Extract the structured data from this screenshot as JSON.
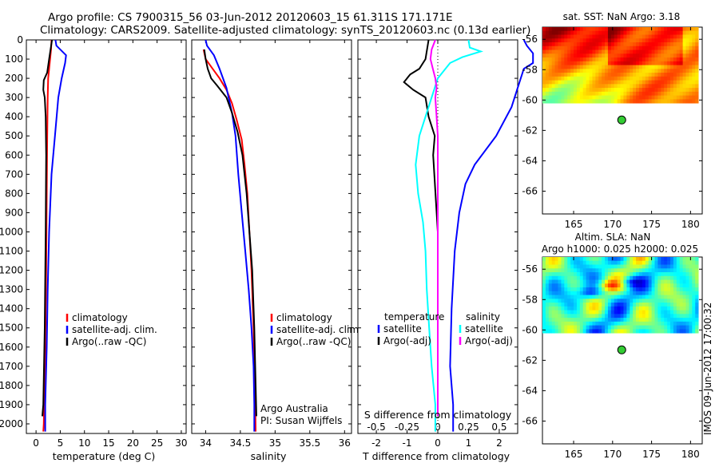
{
  "header": {
    "line1": "Argo profile: CS 7900315_56 03-Jun-2012 20120603_15 61.311S 171.171E",
    "line2": "Climatology: CARS2009. Satellite-adjusted climatology: synTS_20120603.nc (0.13d earlier)"
  },
  "colors": {
    "climatology": "#ff0000",
    "satellite": "#0000ff",
    "argo": "#000000",
    "sal_satellite": "#00ffff",
    "sal_argo": "#ff00ff",
    "marker": "#33cc33"
  },
  "chart_data": [
    {
      "type": "line",
      "id": "temperature",
      "xlabel": "temperature (deg C)",
      "xlim": [
        -2,
        31
      ],
      "ylim": [
        2050,
        0
      ],
      "xticks": [
        0,
        5,
        10,
        15,
        20,
        25,
        30
      ],
      "yticks": [
        0,
        100,
        200,
        300,
        400,
        500,
        600,
        700,
        800,
        900,
        1000,
        1100,
        1200,
        1300,
        1400,
        1500,
        1600,
        1700,
        1800,
        1900,
        2000
      ],
      "legend": [
        "climatology",
        "satellite-adj. clim.",
        "Argo(..raw -QC)"
      ],
      "series": [
        {
          "name": "climatology",
          "color": "#ff0000",
          "points": [
            [
              3.2,
              0
            ],
            [
              3.1,
              50
            ],
            [
              2.9,
              100
            ],
            [
              2.7,
              150
            ],
            [
              2.5,
              200
            ],
            [
              2.4,
              300
            ],
            [
              2.3,
              500
            ],
            [
              2.2,
              800
            ],
            [
              2.1,
              1200
            ],
            [
              1.9,
              1600
            ],
            [
              1.6,
              2000
            ],
            [
              1.5,
              2040
            ]
          ]
        },
        {
          "name": "satellite-adj. clim.",
          "color": "#0000ff",
          "points": [
            [
              4.0,
              0
            ],
            [
              4.2,
              30
            ],
            [
              6.2,
              80
            ],
            [
              6.0,
              120
            ],
            [
              5.3,
              200
            ],
            [
              4.6,
              300
            ],
            [
              3.9,
              500
            ],
            [
              3.2,
              700
            ],
            [
              2.7,
              1000
            ],
            [
              2.4,
              1300
            ],
            [
              2.2,
              1600
            ],
            [
              1.9,
              1900
            ],
            [
              1.9,
              2040
            ]
          ]
        },
        {
          "name": "Argo(..raw -QC)",
          "color": "#000000",
          "points": [
            [
              3.3,
              0
            ],
            [
              3.0,
              50
            ],
            [
              2.7,
              100
            ],
            [
              2.3,
              170
            ],
            [
              1.6,
              210
            ],
            [
              1.5,
              260
            ],
            [
              1.8,
              300
            ],
            [
              2.0,
              400
            ],
            [
              2.1,
              600
            ],
            [
              2.0,
              1000
            ],
            [
              1.8,
              1500
            ],
            [
              1.5,
              1900
            ],
            [
              1.3,
              1960
            ]
          ]
        }
      ]
    },
    {
      "type": "line",
      "id": "salinity",
      "xlabel": "salinity",
      "xlim": [
        33.8,
        36.1
      ],
      "ylim": [
        2050,
        0
      ],
      "xticks": [
        34,
        34.5,
        35,
        35.5,
        36
      ],
      "xticklabels": [
        "34",
        "34.5",
        "35",
        "35.5",
        "36"
      ],
      "legend": [
        "climatology",
        "satellite-adj. clim.",
        "Argo(..raw -QC)"
      ],
      "annotations": [
        "Argo Australia",
        "PI: Susan Wijffels"
      ],
      "series": [
        {
          "name": "climatology",
          "color": "#ff0000",
          "points": [
            [
              33.97,
              50
            ],
            [
              34.0,
              100
            ],
            [
              34.1,
              150
            ],
            [
              34.2,
              200
            ],
            [
              34.3,
              260
            ],
            [
              34.38,
              330
            ],
            [
              34.45,
              420
            ],
            [
              34.52,
              520
            ],
            [
              34.56,
              650
            ],
            [
              34.6,
              800
            ],
            [
              34.63,
              1000
            ],
            [
              34.66,
              1200
            ],
            [
              34.69,
              1500
            ],
            [
              34.71,
              1800
            ],
            [
              34.72,
              2040
            ]
          ]
        },
        {
          "name": "satellite-adj. clim.",
          "color": "#0000ff",
          "points": [
            [
              34.0,
              0
            ],
            [
              34.02,
              30
            ],
            [
              34.12,
              80
            ],
            [
              34.2,
              150
            ],
            [
              34.3,
              250
            ],
            [
              34.38,
              380
            ],
            [
              34.43,
              500
            ],
            [
              34.47,
              700
            ],
            [
              34.52,
              900
            ],
            [
              34.57,
              1100
            ],
            [
              34.62,
              1300
            ],
            [
              34.66,
              1500
            ],
            [
              34.69,
              1700
            ],
            [
              34.7,
              1900
            ],
            [
              34.7,
              2040
            ]
          ]
        },
        {
          "name": "Argo(..raw -QC)",
          "color": "#000000",
          "points": [
            [
              33.98,
              50
            ],
            [
              34.0,
              100
            ],
            [
              34.03,
              150
            ],
            [
              34.08,
              200
            ],
            [
              34.17,
              240
            ],
            [
              34.3,
              300
            ],
            [
              34.38,
              380
            ],
            [
              34.46,
              480
            ],
            [
              34.53,
              600
            ],
            [
              34.59,
              800
            ],
            [
              34.63,
              1000
            ],
            [
              34.67,
              1200
            ],
            [
              34.7,
              1500
            ],
            [
              34.72,
              1800
            ],
            [
              34.73,
              1960
            ]
          ]
        }
      ]
    },
    {
      "type": "line",
      "id": "difference",
      "xlabel": "T difference from climatology",
      "xlabel_top": "S difference from climatology",
      "xlim": [
        -2.6,
        2.6
      ],
      "xlim_top": [
        -0.65,
        0.65
      ],
      "ylim": [
        2050,
        0
      ],
      "xticks": [
        -2,
        -1,
        0,
        1,
        2
      ],
      "xticks_top": [
        -0.5,
        -0.25,
        0,
        0.25,
        0.5
      ],
      "xticklabels_top": [
        "-0.5",
        "-0.25",
        "0",
        "0.25",
        "0.5"
      ],
      "legend_groups": [
        {
          "title": "temperature",
          "items": [
            "satellite",
            "Argo(-adj)"
          ]
        },
        {
          "title": "salinity",
          "items": [
            "satellite",
            "Argo(-adj)"
          ]
        }
      ],
      "series": [
        {
          "name": "satellite",
          "group": "temperature",
          "axis": "T",
          "color": "#0000ff",
          "points": [
            [
              2.8,
              0
            ],
            [
              2.9,
              30
            ],
            [
              3.1,
              70
            ],
            [
              3.1,
              120
            ],
            [
              2.8,
              150
            ],
            [
              2.6,
              250
            ],
            [
              2.4,
              350
            ],
            [
              1.9,
              500
            ],
            [
              1.2,
              650
            ],
            [
              0.9,
              750
            ],
            [
              0.7,
              900
            ],
            [
              0.55,
              1100
            ],
            [
              0.45,
              1400
            ],
            [
              0.4,
              1700
            ],
            [
              0.5,
              1900
            ],
            [
              0.5,
              2040
            ]
          ]
        },
        {
          "name": "Argo(-adj)",
          "group": "temperature",
          "axis": "T",
          "color": "#000000",
          "points": [
            [
              -0.3,
              0
            ],
            [
              -0.4,
              100
            ],
            [
              -0.6,
              150
            ],
            [
              -0.9,
              180
            ],
            [
              -1.1,
              220
            ],
            [
              -0.8,
              260
            ],
            [
              -0.4,
              300
            ],
            [
              -0.3,
              400
            ],
            [
              -0.1,
              500
            ],
            [
              -0.15,
              600
            ],
            [
              0,
              1000
            ],
            [
              0,
              1500
            ],
            [
              0,
              1960
            ]
          ]
        },
        {
          "name": "satellite",
          "group": "salinity",
          "axis": "S",
          "color": "#00ffff",
          "points": [
            [
              0.25,
              0
            ],
            [
              0.26,
              40
            ],
            [
              0.35,
              60
            ],
            [
              0.2,
              90
            ],
            [
              0.1,
              120
            ],
            [
              0.0,
              200
            ],
            [
              -0.05,
              300
            ],
            [
              -0.1,
              400
            ],
            [
              -0.15,
              500
            ],
            [
              -0.18,
              650
            ],
            [
              -0.16,
              800
            ],
            [
              -0.12,
              950
            ],
            [
              -0.1,
              1100
            ],
            [
              -0.09,
              1300
            ],
            [
              -0.07,
              1500
            ],
            [
              -0.05,
              1700
            ],
            [
              -0.02,
              1900
            ],
            [
              -0.02,
              2040
            ]
          ]
        },
        {
          "name": "Argo(-adj)",
          "group": "salinity",
          "axis": "S",
          "color": "#ff00ff",
          "points": [
            [
              -0.02,
              0
            ],
            [
              -0.05,
              50
            ],
            [
              -0.06,
              100
            ],
            [
              -0.04,
              150
            ],
            [
              -0.02,
              200
            ],
            [
              -0.01,
              250
            ],
            [
              -0.02,
              300
            ],
            [
              -0.01,
              400
            ],
            [
              0.0,
              500
            ],
            [
              0.0,
              700
            ],
            [
              0.0,
              1000
            ],
            [
              0.0,
              1500
            ],
            [
              0.0,
              1960
            ]
          ]
        }
      ]
    },
    {
      "type": "heatmap",
      "id": "sst_map",
      "title": "sat. SST: NaN Argo: 3.18",
      "xlim": [
        161,
        181.5
      ],
      "ylim": [
        -67.5,
        -55.2
      ],
      "xticks": [
        165,
        170,
        175,
        180
      ],
      "yticks": [
        -56,
        -58,
        -60,
        -62,
        -64,
        -66
      ],
      "colormap": "jet",
      "data_extent": {
        "lon": [
          161,
          181
        ],
        "lat": [
          -60.2,
          -55.2
        ]
      },
      "argo_position": {
        "lon": 171.171,
        "lat": -61.311
      }
    },
    {
      "type": "heatmap",
      "id": "sla_map",
      "title": "Altim. SLA: NaN",
      "subtitle": "Argo h1000: 0.025 h2000: 0.025",
      "xlim": [
        161,
        181.5
      ],
      "ylim": [
        -67.5,
        -55.2
      ],
      "xticks": [
        165,
        170,
        175,
        180
      ],
      "yticks": [
        -56,
        -58,
        -60,
        -62,
        -64,
        -66
      ],
      "colormap": "jet",
      "data_extent": {
        "lon": [
          161,
          181
        ],
        "lat": [
          -60.2,
          -55.2
        ]
      },
      "argo_position": {
        "lon": 171.171,
        "lat": -61.311
      }
    }
  ],
  "watermark": "IMOS 09-Jun-2012 17:00:32"
}
